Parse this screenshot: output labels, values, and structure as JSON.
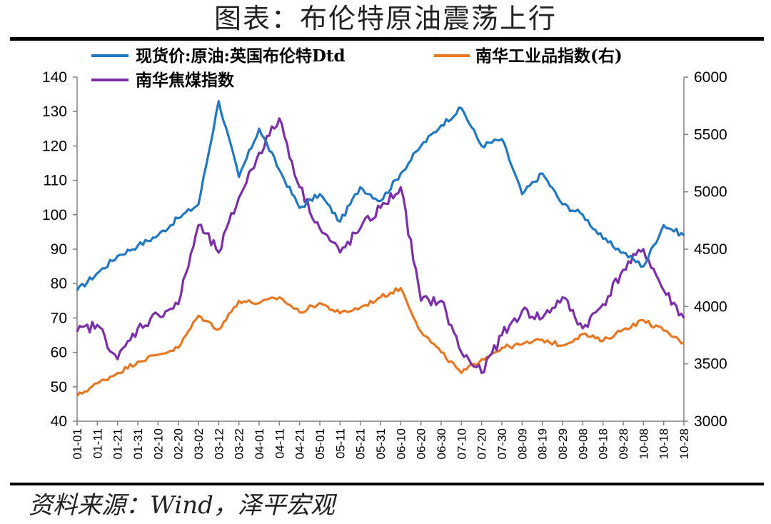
{
  "title": "图表：布伦特原油震荡上行",
  "source": "资料来源：Wind，泽平宏观",
  "colors": {
    "brent": "#1f78c1",
    "nanhua_industrial": "#e87722",
    "nanhua_coke": "#7b2fa8",
    "axis": "#808080"
  },
  "chart_data": {
    "type": "line",
    "title": "",
    "legend_position": "top",
    "grid": false,
    "x_categories": [
      "01-01",
      "01-11",
      "01-21",
      "01-31",
      "02-10",
      "02-20",
      "03-02",
      "03-12",
      "03-22",
      "04-01",
      "04-11",
      "04-21",
      "05-01",
      "05-11",
      "05-21",
      "05-31",
      "06-10",
      "06-20",
      "06-30",
      "07-10",
      "07-20",
      "07-30",
      "08-09",
      "08-19",
      "08-29",
      "09-08",
      "09-18",
      "09-28",
      "10-08",
      "10-18",
      "10-28"
    ],
    "y_left": {
      "min": 40,
      "max": 140,
      "ticks": [
        40,
        50,
        60,
        70,
        80,
        90,
        100,
        110,
        120,
        130,
        140
      ]
    },
    "y_right": {
      "min": 3000,
      "max": 6000,
      "ticks": [
        3000,
        3500,
        4000,
        4500,
        5000,
        5500,
        6000
      ]
    },
    "series": [
      {
        "name": "现货价:原油:英国布伦特Dtd",
        "axis": "left",
        "values": [
          78,
          83,
          88,
          91,
          94,
          99,
          103,
          133,
          111,
          125,
          113,
          102,
          106,
          98,
          108,
          104,
          112,
          120,
          126,
          131,
          120,
          122,
          106,
          112,
          103,
          100,
          93,
          89,
          85,
          97,
          94
        ]
      },
      {
        "name": "南华工业品指数(右)",
        "axis": "right",
        "values": [
          3220,
          3330,
          3420,
          3520,
          3580,
          3640,
          3920,
          3800,
          4050,
          4030,
          4080,
          3950,
          4030,
          3940,
          3990,
          4080,
          4160,
          3780,
          3600,
          3420,
          3540,
          3640,
          3670,
          3710,
          3660,
          3760,
          3700,
          3800,
          3880,
          3790,
          3680
        ]
      },
      {
        "name": "南华焦煤指数",
        "axis": "left",
        "values": [
          66,
          68,
          58,
          67,
          71,
          74,
          97,
          89,
          105,
          118,
          128,
          108,
          96,
          89,
          96,
          102,
          108,
          75,
          75,
          60,
          54,
          65,
          72,
          70,
          76,
          67,
          74,
          84,
          90,
          78,
          70
        ]
      }
    ]
  }
}
